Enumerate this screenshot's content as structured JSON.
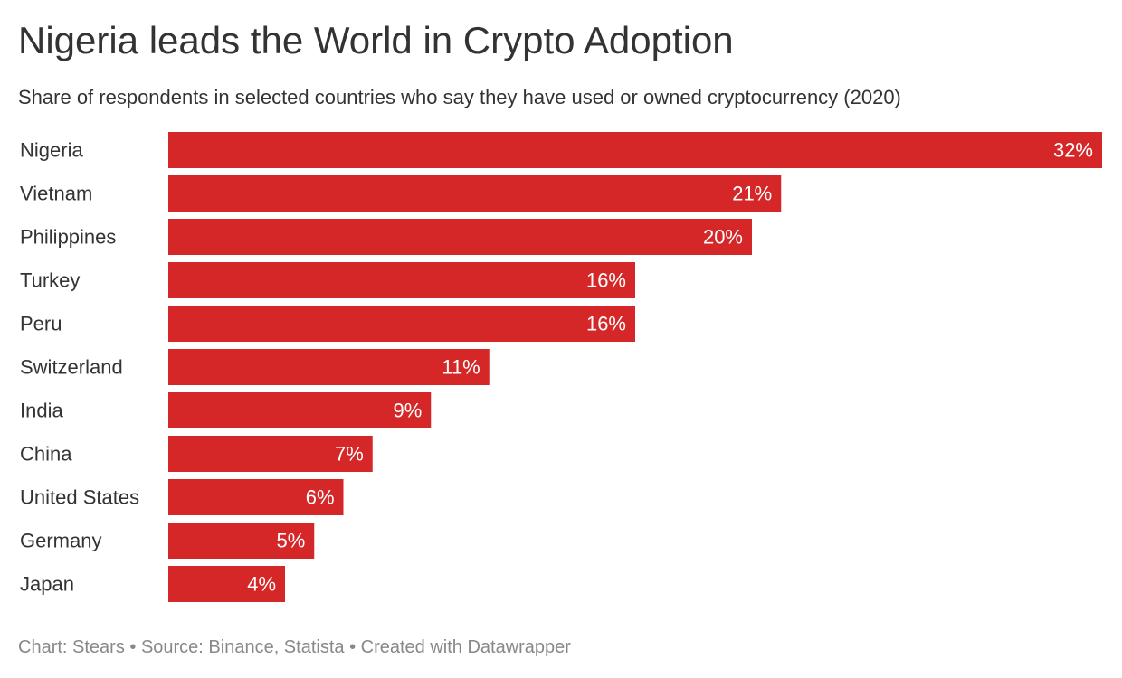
{
  "chart_data": {
    "type": "bar",
    "orientation": "horizontal",
    "title": "Nigeria leads the World in Crypto Adoption",
    "subtitle": "Share of respondents in selected countries who say they have used or owned cryptocurrency (2020)",
    "categories": [
      "Nigeria",
      "Vietnam",
      "Philippines",
      "Turkey",
      "Peru",
      "Switzerland",
      "India",
      "China",
      "United States",
      "Germany",
      "Japan"
    ],
    "values": [
      32,
      21,
      20,
      16,
      16,
      11,
      9,
      7,
      6,
      5,
      4
    ],
    "value_labels": [
      "32%",
      "21%",
      "20%",
      "16%",
      "16%",
      "11%",
      "9%",
      "7%",
      "6%",
      "5%",
      "4%"
    ],
    "unit": "%",
    "xlim": [
      0,
      32
    ],
    "grid": false,
    "bar_color": "#d62728",
    "footer": "Chart: Stears • Source: Binance, Statista • Created with Datawrapper"
  }
}
